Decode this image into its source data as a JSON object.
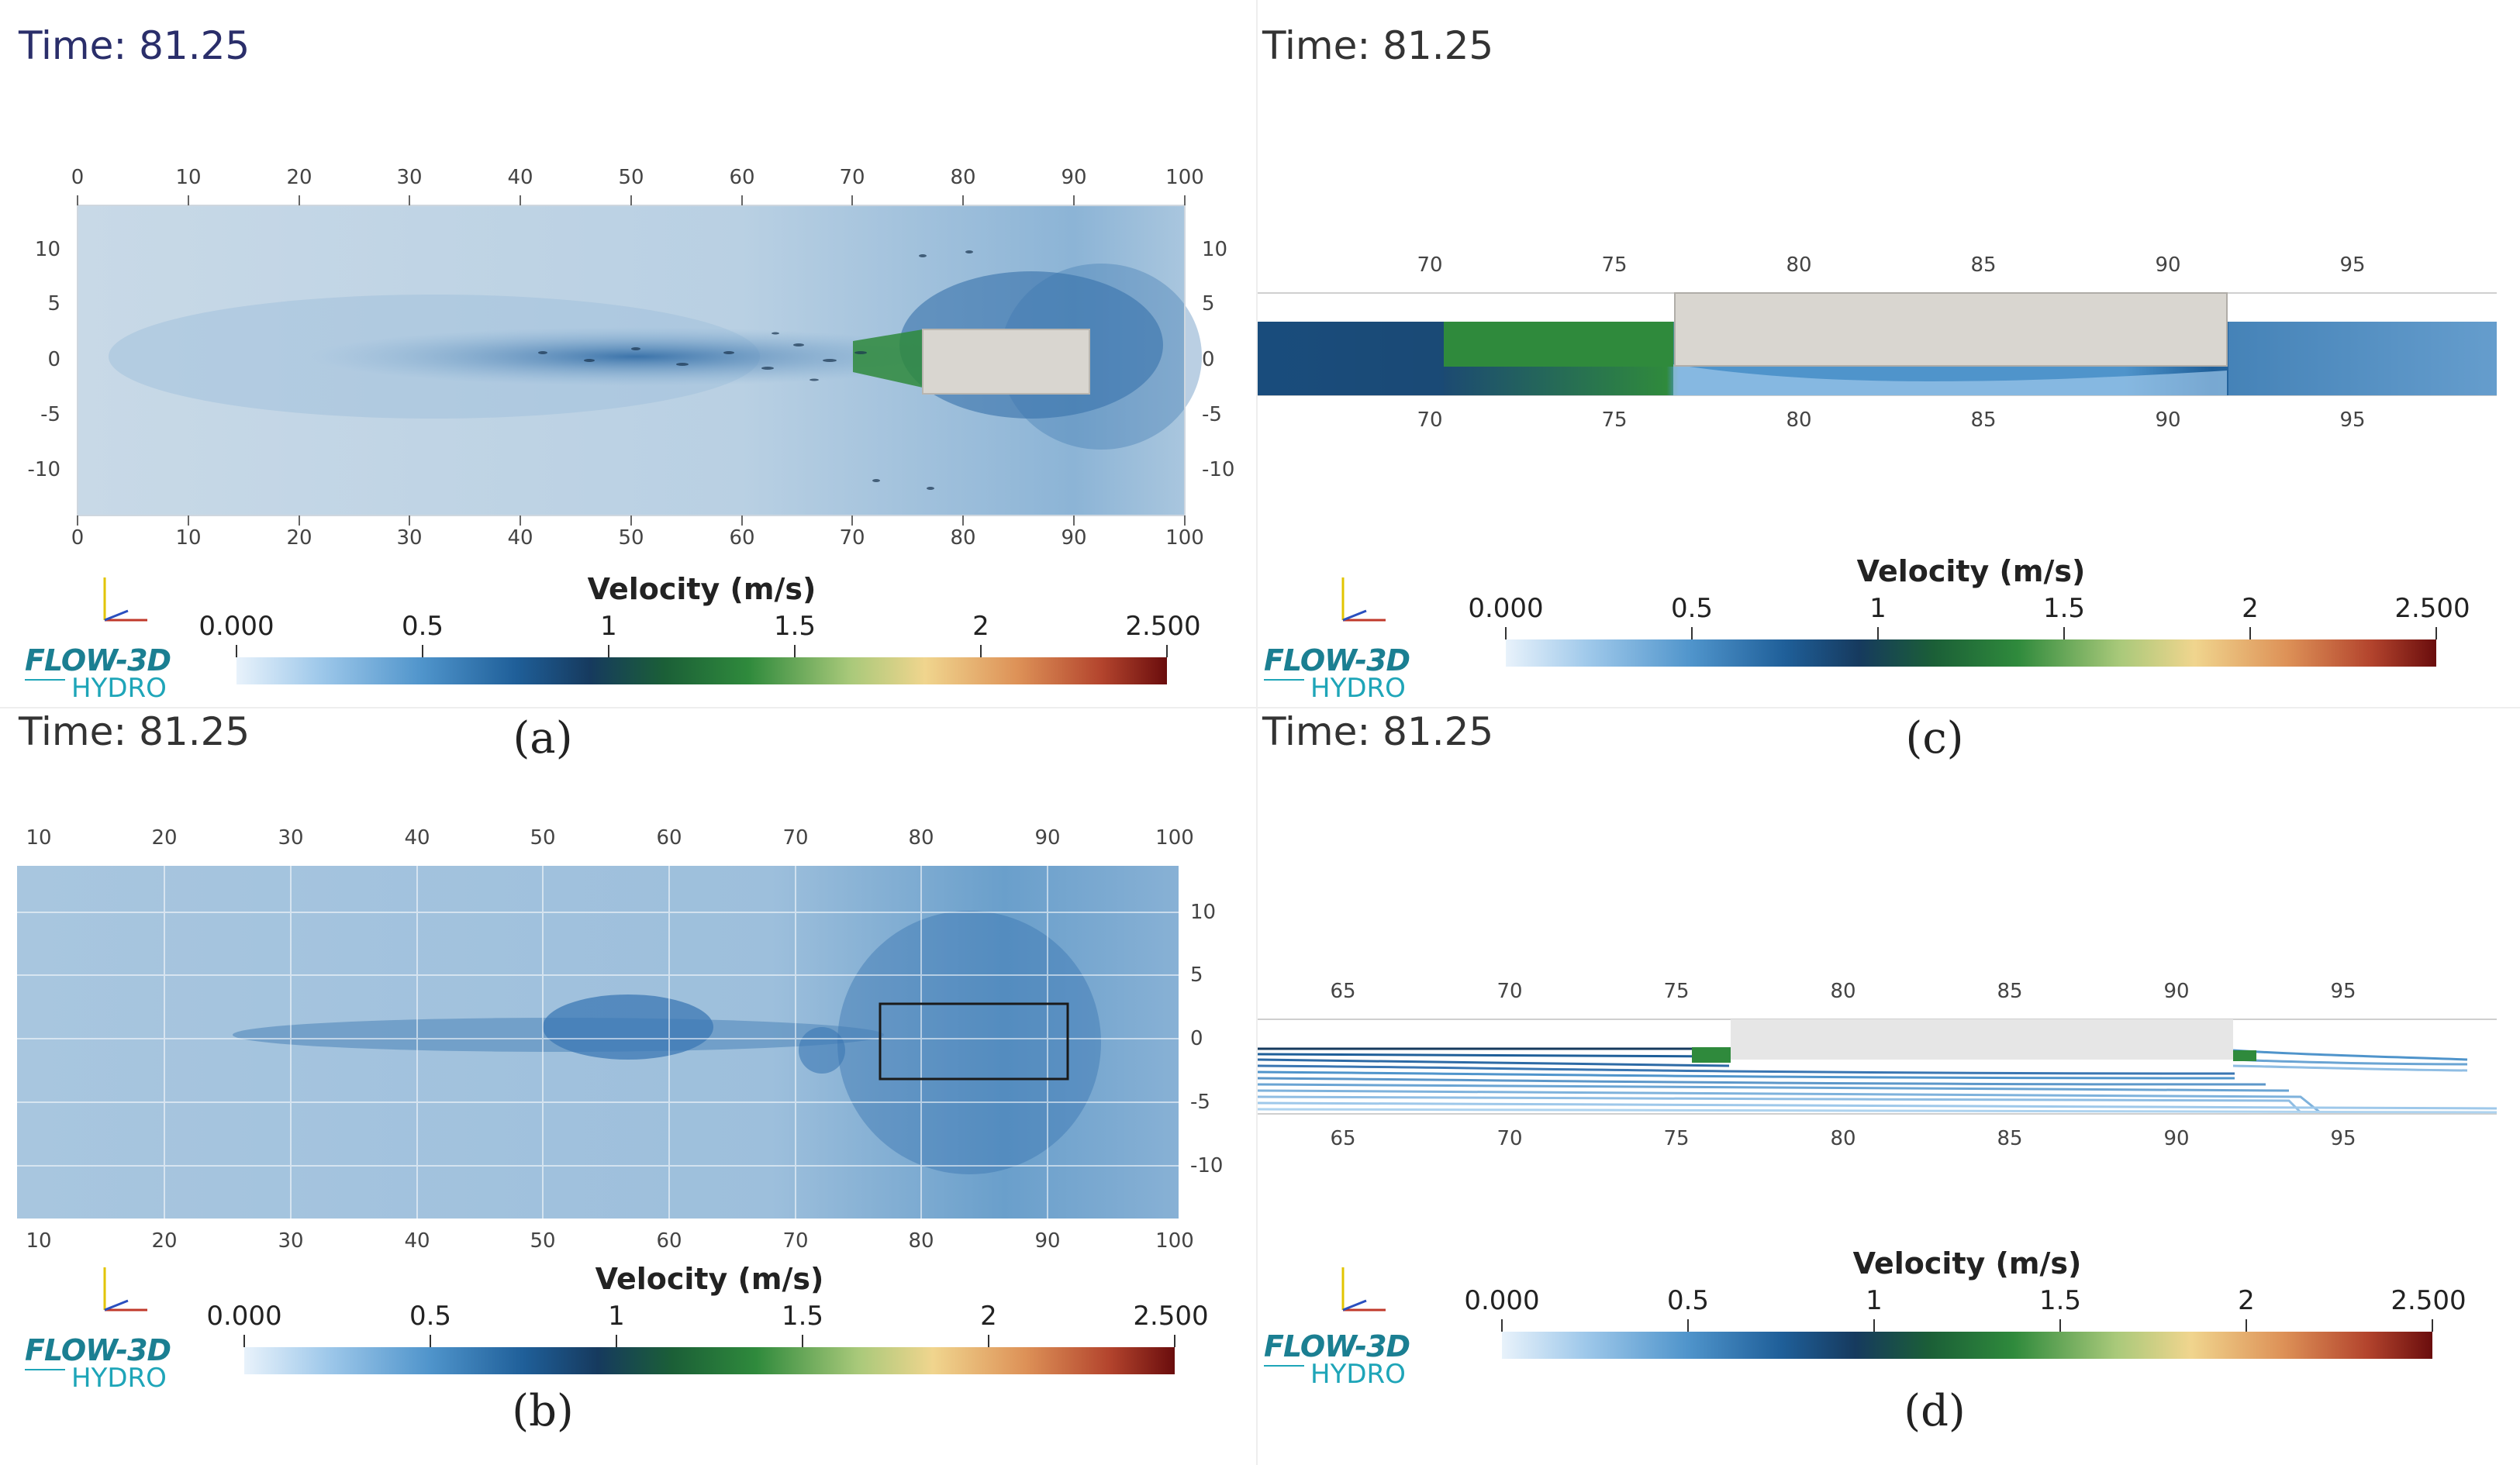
{
  "figure": {
    "colorbar_title": "Velocity (m/s)",
    "colorbar_ticks": [
      "0.000",
      "0.5",
      "1",
      "1.5",
      "2",
      "2.500"
    ],
    "colormap": [
      "#e8f2fb",
      "#9ec8ea",
      "#4f94cb",
      "#1f5f99",
      "#163a5e",
      "#1b5f37",
      "#2f8a3c",
      "#a9c97a",
      "#f0d58e",
      "#dd9157",
      "#b3442d",
      "#6a0d0d"
    ],
    "logo": {
      "line1": "FLOW-3D",
      "line2": "HYDRO"
    }
  },
  "panels": [
    {
      "id": "a",
      "time_label": "Time: 81.25",
      "caption": "(a)",
      "x_ticks": [
        "0",
        "10",
        "20",
        "30",
        "40",
        "50",
        "60",
        "70",
        "80",
        "90",
        "100"
      ],
      "y_ticks": [
        "10",
        "5",
        "0",
        "-5",
        "-10"
      ]
    },
    {
      "id": "b",
      "time_label": "Time: 81.25",
      "caption": "(b)",
      "x_ticks": [
        "10",
        "20",
        "30",
        "40",
        "50",
        "60",
        "70",
        "80",
        "90",
        "100"
      ],
      "y_ticks": [
        "10",
        "5",
        "0",
        "-5",
        "-10"
      ]
    },
    {
      "id": "c",
      "time_label": "Time: 81.25",
      "caption": "(c)",
      "x_ticks": [
        "70",
        "75",
        "80",
        "85",
        "90",
        "95"
      ]
    },
    {
      "id": "d",
      "time_label": "Time: 81.25",
      "caption": "(d)",
      "x_ticks": [
        "65",
        "70",
        "75",
        "80",
        "85",
        "90",
        "95"
      ]
    }
  ]
}
